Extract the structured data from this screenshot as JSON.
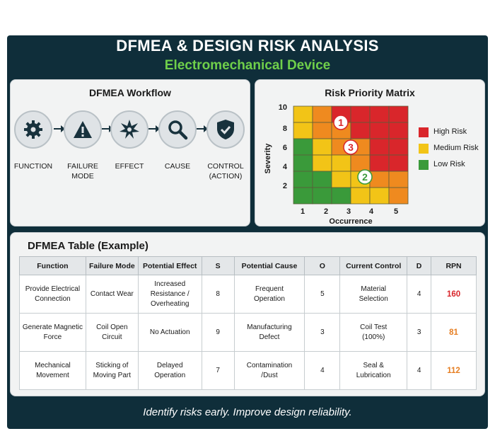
{
  "header": {
    "title": "DFMEA & DESIGN RISK ANALYSIS",
    "subtitle": "Electromechanical Device"
  },
  "workflow": {
    "title": "DFMEA Workflow",
    "steps": [
      {
        "line1": "FUNCTION",
        "line2": "",
        "icon": "gear-icon"
      },
      {
        "line1": "FAILURE",
        "line2": "MODE",
        "icon": "warning-icon"
      },
      {
        "line1": "EFFECT",
        "line2": "",
        "icon": "burst-icon"
      },
      {
        "line1": "CAUSE",
        "line2": "",
        "icon": "magnifier-icon"
      },
      {
        "line1": "CONTROL",
        "line2": "(ACTION)",
        "icon": "shield-check-icon"
      }
    ]
  },
  "matrix": {
    "title": "Risk Priority Matrix",
    "xlabel": "Occurrence",
    "ylabel": "Severity",
    "x_ticks": [
      "1",
      "2",
      "3",
      "4",
      "5"
    ],
    "y_ticks": [
      "10",
      "8",
      "6",
      "4",
      "2"
    ],
    "legend": [
      {
        "label": "High Risk",
        "color": "#d9262b"
      },
      {
        "label": "Medium Risk",
        "color": "#f2c417"
      },
      {
        "label": "Low Risk",
        "color": "#3a9a3a"
      }
    ],
    "colors": {
      "red": "#d9262b",
      "orange": "#ef8a1f",
      "yellow": "#f2c417",
      "green": "#3a9a3a"
    },
    "markers": [
      {
        "label": "1",
        "color": "#d9262b"
      },
      {
        "label": "3",
        "color": "#d9262b"
      },
      {
        "label": "2",
        "color": "#3a9a3a"
      }
    ]
  },
  "table": {
    "title": "DFMEA Table (Example)",
    "headers": [
      "Function",
      "Failure Mode",
      "Potential Effect",
      "S",
      "Potential Cause",
      "O",
      "Current Control",
      "D",
      "RPN"
    ],
    "rows": [
      {
        "function": [
          "Provide Electrical",
          "Connection"
        ],
        "failure_mode": [
          "Contact Wear"
        ],
        "effect": [
          "Increased",
          "Resistance /",
          "Overheating"
        ],
        "s": "8",
        "cause": [
          "Frequent",
          "Operation"
        ],
        "o": "5",
        "control": [
          "Material",
          "Selection"
        ],
        "d": "4",
        "rpn": "160",
        "rpn_color": "#d9262b"
      },
      {
        "function": [
          "Generate Magnetic",
          "Force"
        ],
        "failure_mode": [
          "Coil Open",
          "Circuit"
        ],
        "effect": [
          "No Actuation"
        ],
        "s": "9",
        "cause": [
          "Manufacturing",
          "Defect"
        ],
        "o": "3",
        "control": [
          "Coil Test",
          "(100%)"
        ],
        "d": "3",
        "rpn": "81",
        "rpn_color": "#e67e22"
      },
      {
        "function": [
          "Mechanical",
          "Movement"
        ],
        "failure_mode": [
          "Sticking of",
          "Moving Part"
        ],
        "effect": [
          "Delayed",
          "Operation"
        ],
        "s": "7",
        "cause": [
          "Contamination",
          "/Dust"
        ],
        "o": "4",
        "control": [
          "Seal &",
          "Lubrication"
        ],
        "d": "4",
        "rpn": "112",
        "rpn_color": "#e67e22"
      }
    ]
  },
  "footer": {
    "tagline": "Identify risks early. Improve design reliability."
  }
}
